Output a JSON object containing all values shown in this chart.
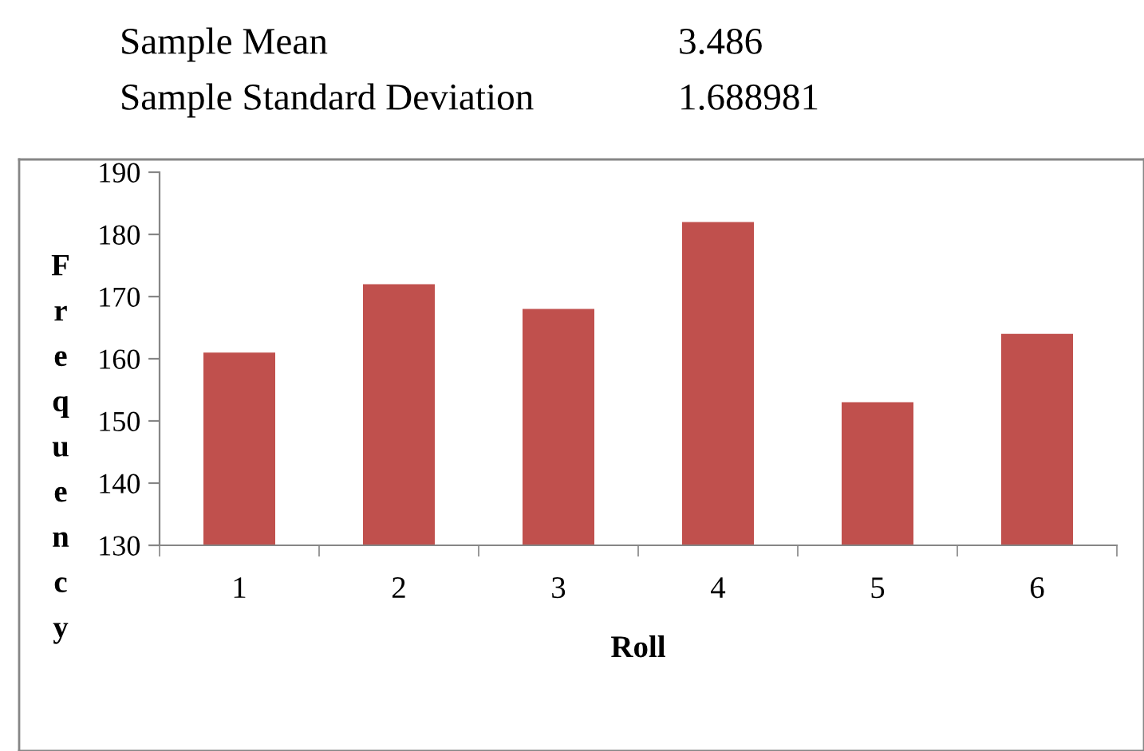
{
  "chart_data": {
    "type": "bar",
    "categories": [
      "1",
      "2",
      "3",
      "4",
      "5",
      "6"
    ],
    "values": [
      161,
      172,
      168,
      182,
      153,
      164
    ],
    "color": "#c0504d",
    "xlabel": "Roll",
    "ylabel": "Frequency",
    "ylim": [
      130,
      190
    ],
    "yticks": [
      130,
      140,
      150,
      160,
      170,
      180,
      190
    ],
    "grid": false,
    "legend": false,
    "annotations": [
      "Sample Mean",
      "3.486",
      "Sample Standard Deviation",
      "1.688981"
    ]
  }
}
